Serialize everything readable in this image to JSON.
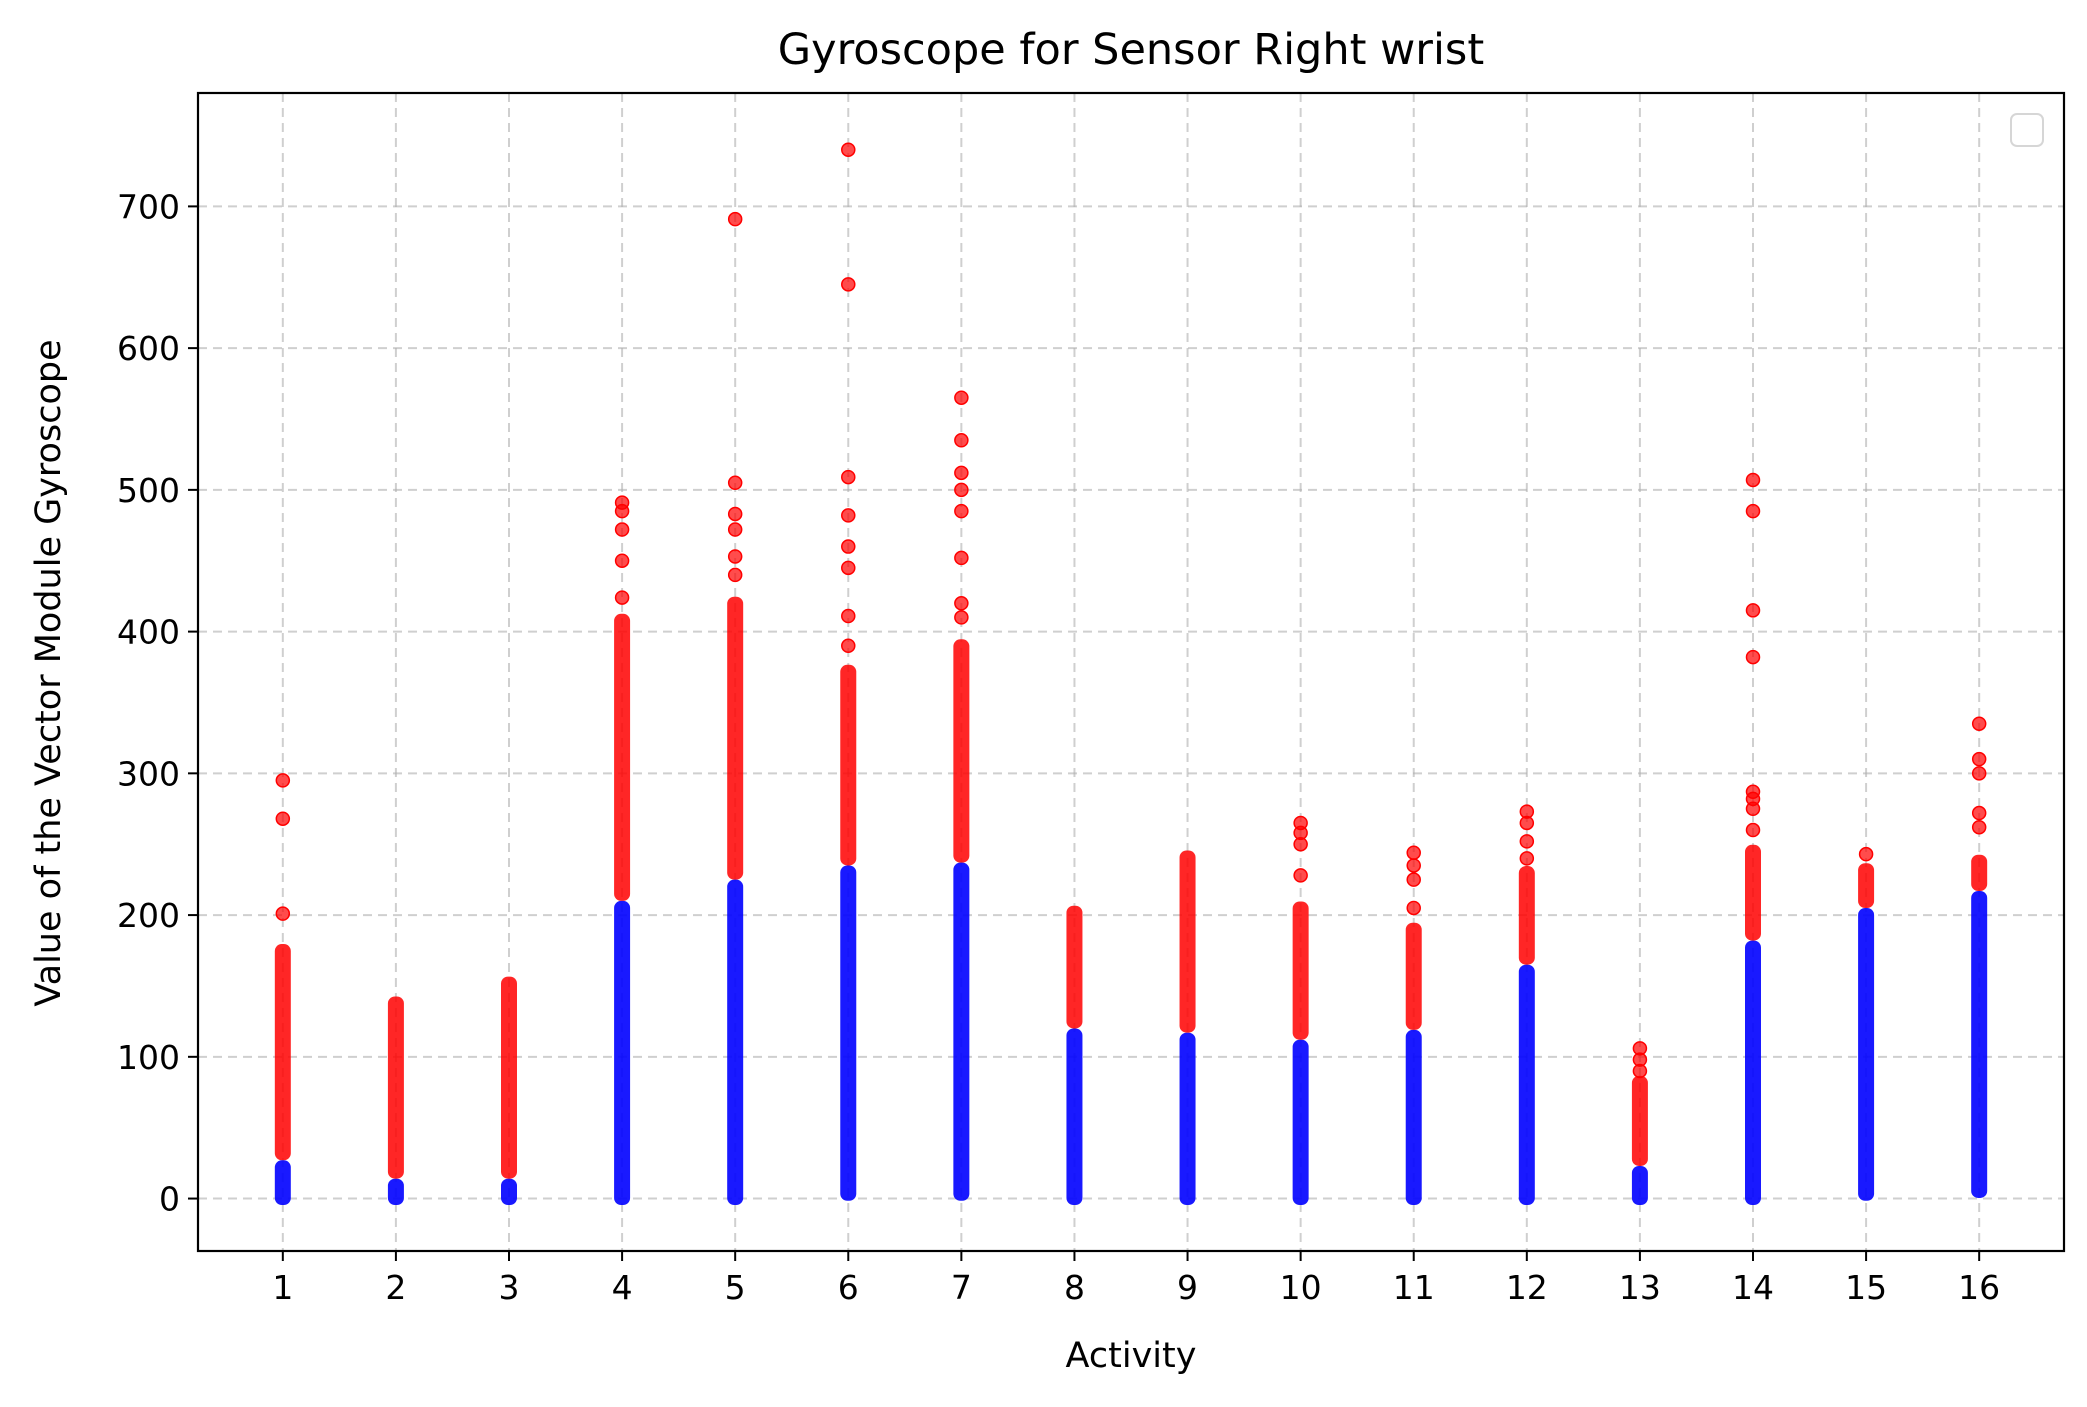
{
  "chart_data": {
    "type": "scatter",
    "title": "Gyroscope for Sensor Right wrist",
    "xlabel": "Activity",
    "ylabel": "Value of the Vector Module Gyroscope",
    "categories": [
      1,
      2,
      3,
      4,
      5,
      6,
      7,
      8,
      9,
      10,
      11,
      12,
      13,
      14,
      15,
      16
    ],
    "xlim": [
      0.25,
      16.75
    ],
    "ylim": [
      -37,
      780
    ],
    "yticks": [
      0,
      100,
      200,
      300,
      400,
      500,
      600,
      700
    ],
    "grid": true,
    "legend": "top-right (empty)",
    "colors": {
      "threshold_below": "#0000ff",
      "threshold_above": "#ff0000"
    },
    "activities": [
      {
        "activity": 1,
        "min": 0,
        "threshold": 27,
        "continuous_top": 175,
        "outliers": [
          201,
          268,
          295
        ]
      },
      {
        "activity": 2,
        "min": 0,
        "threshold": 14,
        "continuous_top": 138,
        "outliers": []
      },
      {
        "activity": 3,
        "min": 0,
        "threshold": 14,
        "continuous_top": 152,
        "outliers": []
      },
      {
        "activity": 4,
        "min": 0,
        "threshold": 210,
        "continuous_top": 408,
        "outliers": [
          424,
          450,
          472,
          485,
          491
        ]
      },
      {
        "activity": 5,
        "min": 0,
        "threshold": 225,
        "continuous_top": 420,
        "outliers": [
          440,
          453,
          472,
          483,
          505,
          691
        ]
      },
      {
        "activity": 6,
        "min": 3,
        "threshold": 235,
        "continuous_top": 372,
        "outliers": [
          390,
          411,
          445,
          460,
          482,
          509,
          645,
          740
        ]
      },
      {
        "activity": 7,
        "min": 3,
        "threshold": 237,
        "continuous_top": 390,
        "outliers": [
          410,
          420,
          452,
          485,
          500,
          512,
          535,
          565
        ]
      },
      {
        "activity": 8,
        "min": 0,
        "threshold": 120,
        "continuous_top": 202,
        "outliers": []
      },
      {
        "activity": 9,
        "min": 0,
        "threshold": 117,
        "continuous_top": 241,
        "outliers": []
      },
      {
        "activity": 10,
        "min": 0,
        "threshold": 112,
        "continuous_top": 205,
        "outliers": [
          228,
          250,
          258,
          265
        ]
      },
      {
        "activity": 11,
        "min": 0,
        "threshold": 119,
        "continuous_top": 190,
        "outliers": [
          205,
          225,
          235,
          244
        ]
      },
      {
        "activity": 12,
        "min": 0,
        "threshold": 165,
        "continuous_top": 230,
        "outliers": [
          240,
          252,
          265,
          273
        ]
      },
      {
        "activity": 13,
        "min": 0,
        "threshold": 23,
        "continuous_top": 82,
        "outliers": [
          90,
          98,
          106
        ]
      },
      {
        "activity": 14,
        "min": 0,
        "threshold": 182,
        "continuous_top": 245,
        "outliers": [
          260,
          275,
          282,
          287,
          382,
          415,
          485,
          507
        ]
      },
      {
        "activity": 15,
        "min": 3,
        "threshold": 205,
        "continuous_top": 232,
        "outliers": [
          243
        ]
      },
      {
        "activity": 16,
        "min": 5,
        "threshold": 217,
        "continuous_top": 238,
        "outliers": [
          262,
          272,
          300,
          310,
          335
        ]
      }
    ]
  }
}
